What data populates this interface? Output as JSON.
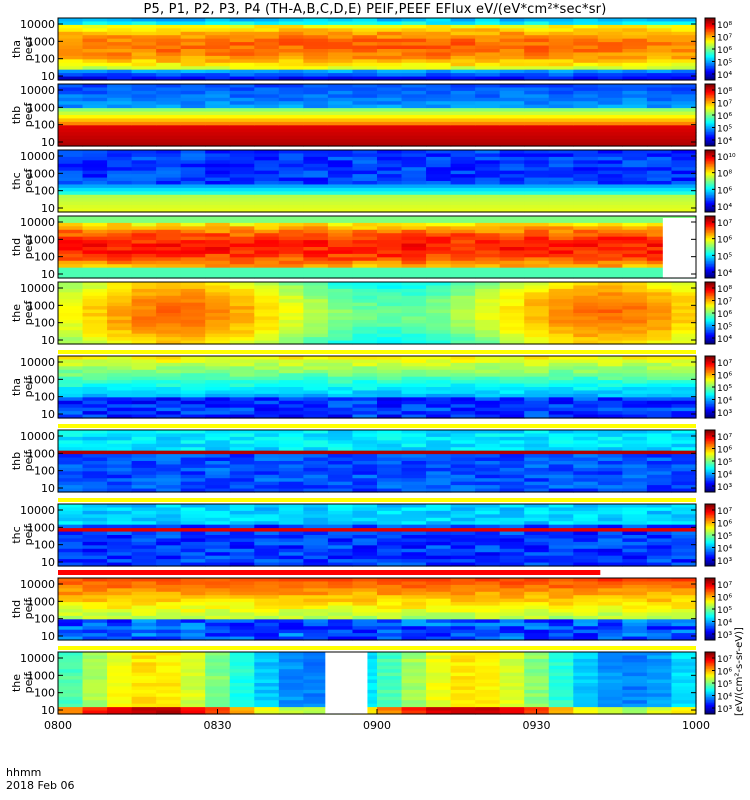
{
  "title": "P5, P1, P2, P3, P4 (TH-A,B,C,D,E) PEIF,PEEF EFlux eV/(eV*cm²*sec*sr)",
  "colorbar_label": "[eV/(cm²-s-sr-eV)]",
  "chart_data": {
    "type": "heatmap",
    "xlabel": "hhmm",
    "date_label": "2018 Feb 06",
    "x_ticks": [
      "0800",
      "0830",
      "0900",
      "0930",
      "1000"
    ],
    "x_range": [
      "0800",
      "1000"
    ],
    "y_scale": "log",
    "y_ticks": [
      "10",
      "100",
      "1000",
      "10000"
    ],
    "panels": [
      {
        "id": "tha-peef",
        "line1": "tha",
        "line2": "peef",
        "cbar_ticks": [
          "10⁴",
          "10⁵",
          "10⁶",
          "10⁷",
          "10⁸"
        ]
      },
      {
        "id": "thb-peef",
        "line1": "thb",
        "line2": "peef",
        "cbar_ticks": [
          "10⁴",
          "10⁵",
          "10⁶",
          "10⁷",
          "10⁸"
        ]
      },
      {
        "id": "thc-peef",
        "line1": "thc",
        "line2": "peef",
        "cbar_ticks": [
          "10⁴",
          "10⁶",
          "10⁸",
          "10¹⁰"
        ]
      },
      {
        "id": "thd-peef",
        "line1": "thd",
        "line2": "peef",
        "cbar_ticks": [
          "10⁴",
          "10⁵",
          "10⁶",
          "10⁷"
        ]
      },
      {
        "id": "the-peef",
        "line1": "the",
        "line2": "peef",
        "cbar_ticks": [
          "10⁴",
          "10⁵",
          "10⁶",
          "10⁷",
          "10⁸"
        ]
      },
      {
        "id": "tha-peif",
        "line1": "tha",
        "line2": "peif",
        "cbar_ticks": [
          "10³",
          "10⁴",
          "10⁵",
          "10⁶",
          "10⁷"
        ]
      },
      {
        "id": "thb-peif",
        "line1": "thb",
        "line2": "peif",
        "cbar_ticks": [
          "10³",
          "10⁴",
          "10⁵",
          "10⁶",
          "10⁷"
        ]
      },
      {
        "id": "thc-peif",
        "line1": "thc",
        "line2": "peif",
        "cbar_ticks": [
          "10³",
          "10⁴",
          "10⁵",
          "10⁶",
          "10⁷"
        ]
      },
      {
        "id": "thd-peif",
        "line1": "thd",
        "line2": "peif",
        "cbar_ticks": [
          "10³",
          "10⁴",
          "10⁵",
          "10⁶",
          "10⁷"
        ]
      },
      {
        "id": "the-peif",
        "line1": "the",
        "line2": "peif",
        "cbar_ticks": [
          "10³",
          "10⁴",
          "10⁵",
          "10⁶",
          "10⁷"
        ]
      }
    ]
  }
}
